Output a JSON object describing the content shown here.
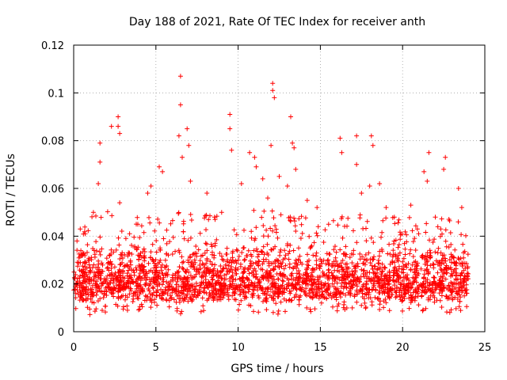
{
  "chart_data": {
    "type": "scatter",
    "title": "Day 188 of 2021, Rate Of TEC Index for receiver anth",
    "xlabel": "GPS time / hours",
    "ylabel": "ROTI / TECUs",
    "xlim": [
      0,
      25
    ],
    "ylim": [
      0,
      0.12
    ],
    "xticks": [
      "0",
      "5",
      "10",
      "15",
      "20",
      "25"
    ],
    "yticks": [
      "0",
      "0.02",
      "0.04",
      "0.06",
      "0.08",
      "0.1",
      "0.12"
    ],
    "grid": true,
    "marker": "+",
    "color": "#ff0000",
    "x_range_of_data": [
      0,
      24
    ],
    "baseline": {
      "x": [
        0,
        1,
        2,
        3,
        4,
        5,
        6,
        7,
        8,
        9,
        10,
        11,
        12,
        13,
        14,
        15,
        16,
        17,
        18,
        19,
        20,
        21,
        22,
        23,
        24
      ],
      "low": [
        0.008,
        0.007,
        0.008,
        0.008,
        0.008,
        0.007,
        0.007,
        0.008,
        0.008,
        0.008,
        0.008,
        0.008,
        0.007,
        0.007,
        0.008,
        0.008,
        0.008,
        0.008,
        0.008,
        0.008,
        0.008,
        0.008,
        0.008,
        0.008,
        0.008
      ],
      "high": [
        0.03,
        0.035,
        0.035,
        0.034,
        0.033,
        0.032,
        0.034,
        0.034,
        0.033,
        0.034,
        0.034,
        0.035,
        0.036,
        0.036,
        0.035,
        0.034,
        0.033,
        0.033,
        0.033,
        0.032,
        0.032,
        0.032,
        0.032,
        0.032,
        0.03
      ]
    },
    "points": [
      [
        1.6,
        0.079
      ],
      [
        1.6,
        0.071
      ],
      [
        1.5,
        0.062
      ],
      [
        2.3,
        0.086
      ],
      [
        2.7,
        0.09
      ],
      [
        2.7,
        0.086
      ],
      [
        2.8,
        0.083
      ],
      [
        2.8,
        0.054
      ],
      [
        0.2,
        0.038
      ],
      [
        0.4,
        0.043
      ],
      [
        1.2,
        0.05
      ],
      [
        3.9,
        0.045
      ],
      [
        4.5,
        0.058
      ],
      [
        4.7,
        0.061
      ],
      [
        5.2,
        0.069
      ],
      [
        5.4,
        0.067
      ],
      [
        6.5,
        0.107
      ],
      [
        6.5,
        0.095
      ],
      [
        6.4,
        0.082
      ],
      [
        6.9,
        0.085
      ],
      [
        7.0,
        0.078
      ],
      [
        7.1,
        0.063
      ],
      [
        6.6,
        0.073
      ],
      [
        8.1,
        0.058
      ],
      [
        9.0,
        0.05
      ],
      [
        9.5,
        0.091
      ],
      [
        9.5,
        0.085
      ],
      [
        9.6,
        0.076
      ],
      [
        10.2,
        0.062
      ],
      [
        10.7,
        0.075
      ],
      [
        11.0,
        0.073
      ],
      [
        11.1,
        0.069
      ],
      [
        11.5,
        0.064
      ],
      [
        12.0,
        0.078
      ],
      [
        12.1,
        0.104
      ],
      [
        12.1,
        0.101
      ],
      [
        12.2,
        0.098
      ],
      [
        12.5,
        0.065
      ],
      [
        13.2,
        0.09
      ],
      [
        13.3,
        0.079
      ],
      [
        13.4,
        0.077
      ],
      [
        13.5,
        0.068
      ],
      [
        13.0,
        0.061
      ],
      [
        14.2,
        0.055
      ],
      [
        16.2,
        0.081
      ],
      [
        16.3,
        0.075
      ],
      [
        17.2,
        0.082
      ],
      [
        17.2,
        0.07
      ],
      [
        17.5,
        0.058
      ],
      [
        18.1,
        0.082
      ],
      [
        18.2,
        0.078
      ],
      [
        18.0,
        0.061
      ],
      [
        18.6,
        0.062
      ],
      [
        19.0,
        0.052
      ],
      [
        19.5,
        0.048
      ],
      [
        20.5,
        0.053
      ],
      [
        21.3,
        0.067
      ],
      [
        21.6,
        0.075
      ],
      [
        21.5,
        0.063
      ],
      [
        22.6,
        0.073
      ],
      [
        22.5,
        0.068
      ],
      [
        23.4,
        0.06
      ],
      [
        23.6,
        0.052
      ],
      [
        20.9,
        0.043
      ],
      [
        14.8,
        0.052
      ],
      [
        15.5,
        0.045
      ],
      [
        3.4,
        0.041
      ],
      [
        8.6,
        0.047
      ],
      [
        11.8,
        0.056
      ],
      [
        12.6,
        0.049
      ]
    ]
  }
}
